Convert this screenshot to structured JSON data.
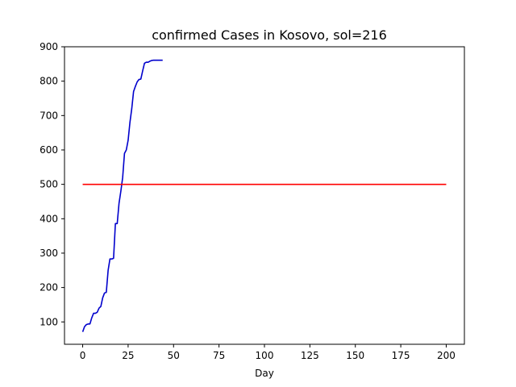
{
  "chart_data": {
    "type": "line",
    "title": "confirmed Cases in Kosovo, sol=216",
    "xlabel": "Day",
    "ylabel": "",
    "xlim": [
      -10,
      210
    ],
    "ylim": [
      35,
      900
    ],
    "xticks": [
      0,
      25,
      50,
      75,
      100,
      125,
      150,
      175,
      200
    ],
    "yticks": [
      100,
      200,
      300,
      400,
      500,
      600,
      700,
      800,
      900
    ],
    "grid": false,
    "series": [
      {
        "color": "#0000cc",
        "x": [
          0,
          1,
          2,
          3,
          4,
          5,
          6,
          7,
          8,
          9,
          10,
          11,
          12,
          13,
          14,
          15,
          16,
          17,
          18,
          19,
          20,
          21,
          22,
          23,
          24,
          25,
          26,
          27,
          28,
          29,
          30,
          31,
          32,
          33,
          34,
          35,
          36,
          37,
          38,
          39,
          40,
          41,
          42,
          43,
          44
        ],
        "y": [
          71,
          86,
          92,
          94,
          94,
          112,
          125,
          125,
          128,
          140,
          145,
          170,
          184,
          186,
          250,
          283,
          283,
          285,
          386,
          386,
          445,
          480,
          520,
          590,
          600,
          628,
          680,
          720,
          770,
          785,
          798,
          805,
          806,
          830,
          852,
          855,
          855,
          858,
          860,
          861,
          861,
          861,
          861,
          861,
          861
        ]
      },
      {
        "color": "#ff0000",
        "x": [
          0,
          200
        ],
        "y": [
          500,
          500
        ]
      }
    ]
  }
}
